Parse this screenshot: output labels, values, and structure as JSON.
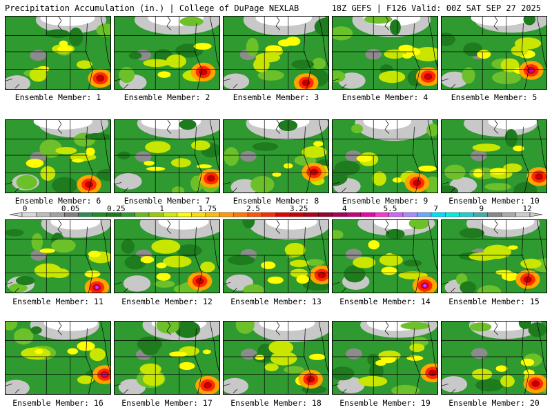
{
  "header": {
    "title": "Precipitation Accumulation (in.) | College of DuPage NEXLAB",
    "run_info": "18Z GEFS | F126 Valid: 00Z SAT SEP 27 2025"
  },
  "colorbar": {
    "ticks": [
      "0",
      "0.05",
      "0.25",
      "1",
      "1.75",
      "2.5",
      "3.25",
      "4",
      "5.5",
      "7",
      "9",
      "12"
    ],
    "colors": [
      "#d8d8d8",
      "#bcbcbc",
      "#a0a0a0",
      "#7f7f7f",
      "#2e8b57",
      "#228b22",
      "#1f7a1f",
      "#339933",
      "#66bb22",
      "#99cc00",
      "#ccee00",
      "#ffff00",
      "#ffdd00",
      "#ffbb00",
      "#ff9900",
      "#ff7700",
      "#ff5500",
      "#ff2a00",
      "#e60000",
      "#cc0000",
      "#b3001a",
      "#990033",
      "#aa0055",
      "#cc0077",
      "#ee00aa",
      "#ff33cc",
      "#cc66ff",
      "#aa88ff",
      "#66aaff",
      "#00ddff",
      "#00eedd",
      "#22cccc",
      "#44aaaa",
      "#888888",
      "#aaaaaa",
      "#cccccc"
    ]
  },
  "members": [
    {
      "label": "Ensemble Member: 1"
    },
    {
      "label": "Ensemble Member: 2"
    },
    {
      "label": "Ensemble Member: 3"
    },
    {
      "label": "Ensemble Member: 4"
    },
    {
      "label": "Ensemble Member: 5"
    },
    {
      "label": "Ensemble Member: 6"
    },
    {
      "label": "Ensemble Member: 7"
    },
    {
      "label": "Ensemble Member: 8"
    },
    {
      "label": "Ensemble Member: 9"
    },
    {
      "label": "Ensemble Member: 10"
    },
    {
      "label": "Ensemble Member: 11"
    },
    {
      "label": "Ensemble Member: 12"
    },
    {
      "label": "Ensemble Member: 13"
    },
    {
      "label": "Ensemble Member: 14"
    },
    {
      "label": "Ensemble Member: 15"
    },
    {
      "label": "Ensemble Member: 16"
    },
    {
      "label": "Ensemble Member: 17"
    },
    {
      "label": "Ensemble Member: 18"
    },
    {
      "label": "Ensemble Member: 19"
    },
    {
      "label": "Ensemble Member: 20"
    }
  ],
  "palette": {
    "white": "#ffffff",
    "light_gray": "#c8c8c8",
    "gray": "#8c8c8c",
    "green_dark": "#1e7b1e",
    "green": "#2f9a2f",
    "green_light": "#6cc02a",
    "yellow_green": "#c8e600",
    "yellow": "#ffff00",
    "orange": "#ffa500",
    "red": "#ff2a00",
    "dark_red": "#c00000",
    "magenta": "#cc00aa",
    "purple": "#aa55ff",
    "boundary": "#000000"
  }
}
